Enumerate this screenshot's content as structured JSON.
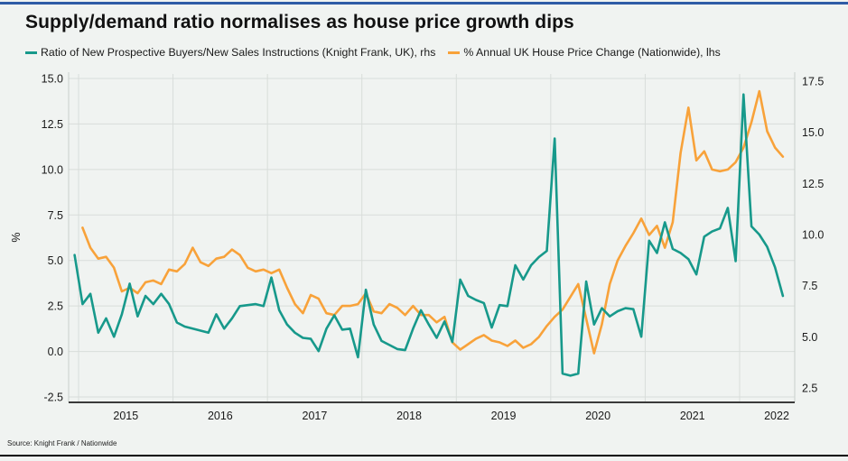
{
  "page": {
    "title": "Supply/demand ratio normalises as house price growth dips",
    "source": "Source: Knight Frank / Nationwide"
  },
  "colors": {
    "teal": "#17998b",
    "orange": "#f8a23a",
    "top_rule_blue": "#2e5ba6",
    "grid": "#d8ddda",
    "axis_line": "#3a3a3a",
    "spine": "#c9cfcc",
    "text": "#1a1a1a",
    "background": "#f0f3f1"
  },
  "legend": [
    {
      "label": "Ratio of New Prospective Buyers/New Sales Instructions (Knight Frank, UK), rhs",
      "color": "#17998b"
    },
    {
      "label": "% Annual UK House Price Change (Nationwide), lhs",
      "color": "#f8a23a"
    }
  ],
  "chart_data": {
    "type": "line",
    "title": "Supply/demand ratio normalises as house price growth dips",
    "xlabel": "",
    "ylabel_left": "%",
    "x_tick_labels": [
      2015,
      2016,
      2017,
      2018,
      2019,
      2020,
      2021,
      2022
    ],
    "left_axis": {
      "ticks": [
        -2.5,
        0.0,
        2.5,
        5.0,
        7.5,
        10.0,
        12.5,
        15.0
      ],
      "range_approx": [
        -2.85,
        15.35
      ],
      "tick_format": "one_decimal"
    },
    "right_axis": {
      "ticks": [
        2.5,
        5.0,
        7.5,
        10.0,
        12.5,
        15.0,
        17.5
      ],
      "range_approx": [
        1.8,
        17.95
      ],
      "tick_format": "one_decimal"
    },
    "grid": true,
    "legend_position": "top",
    "series": [
      {
        "name": "% Annual UK House Price Change (Nationwide), lhs",
        "axis": "lhs",
        "color": "#f8a23a",
        "start_year": 2015,
        "start_month": 1,
        "frequency": "monthly",
        "values": [
          6.8,
          5.7,
          5.1,
          5.2,
          4.6,
          3.3,
          3.5,
          3.2,
          3.8,
          3.9,
          3.7,
          4.5,
          4.4,
          4.8,
          5.7,
          4.9,
          4.7,
          5.1,
          5.2,
          5.6,
          5.3,
          4.6,
          4.4,
          4.5,
          4.3,
          4.5,
          3.5,
          2.6,
          2.1,
          3.1,
          2.9,
          2.1,
          2.0,
          2.5,
          2.5,
          2.6,
          3.2,
          2.2,
          2.1,
          2.6,
          2.4,
          2.0,
          2.5,
          2.0,
          2.0,
          1.6,
          1.9,
          0.5,
          0.1,
          0.4,
          0.7,
          0.9,
          0.6,
          0.5,
          0.3,
          0.6,
          0.2,
          0.4,
          0.8,
          1.4,
          1.9,
          2.3,
          3.0,
          3.7,
          1.8,
          -0.1,
          1.5,
          3.7,
          5.0,
          5.8,
          6.5,
          7.3,
          6.4,
          6.9,
          5.7,
          7.1,
          10.9,
          13.4,
          10.5,
          11.0,
          10.0,
          9.9,
          10.0,
          10.4,
          11.2,
          12.6,
          14.3,
          12.1,
          11.2,
          10.7
        ]
      },
      {
        "name": "Ratio of New Prospective Buyers/New Sales Instructions (Knight Frank, UK), rhs",
        "axis": "rhs",
        "color": "#17998b",
        "start_year": 2014,
        "start_month": 12,
        "frequency": "monthly",
        "values": [
          9.0,
          6.6,
          7.1,
          5.2,
          5.9,
          5.0,
          6.1,
          7.6,
          6.0,
          7.0,
          6.6,
          7.1,
          6.6,
          5.7,
          5.5,
          5.4,
          5.3,
          5.2,
          6.1,
          5.4,
          5.9,
          6.5,
          6.55,
          6.6,
          6.5,
          7.9,
          6.3,
          5.6,
          5.2,
          4.95,
          4.9,
          4.3,
          5.4,
          6.05,
          5.35,
          5.4,
          4.0,
          7.3,
          5.6,
          4.8,
          4.6,
          4.4,
          4.35,
          5.4,
          6.3,
          5.6,
          4.95,
          5.75,
          4.75,
          7.8,
          7.0,
          6.8,
          6.65,
          5.45,
          6.55,
          6.5,
          8.5,
          7.8,
          8.5,
          8.9,
          9.2,
          14.7,
          3.2,
          3.1,
          3.2,
          7.7,
          5.6,
          6.4,
          6.0,
          6.25,
          6.4,
          6.35,
          5.0,
          9.7,
          9.1,
          10.6,
          9.3,
          9.1,
          8.8,
          8.05,
          9.9,
          10.15,
          10.3,
          11.3,
          8.7,
          16.85,
          10.4,
          10.0,
          9.4,
          8.4,
          7.0
        ]
      }
    ]
  }
}
